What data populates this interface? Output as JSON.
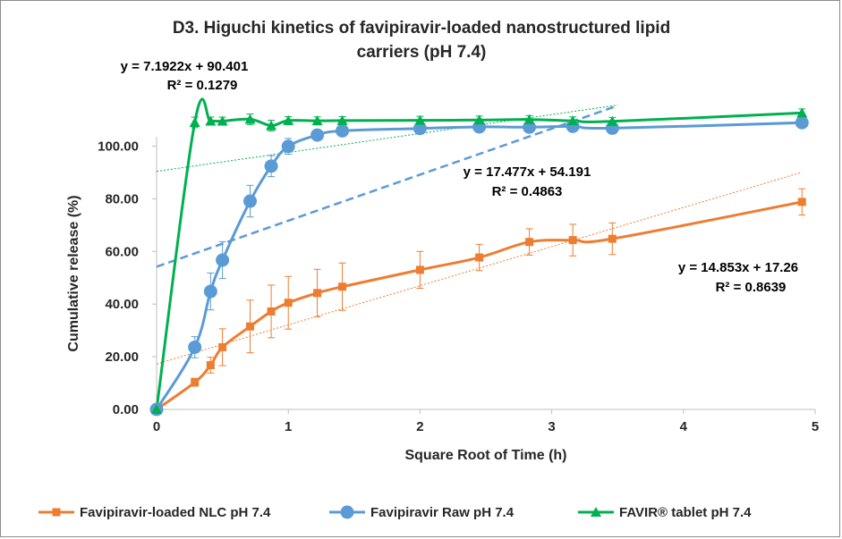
{
  "chart_data": {
    "type": "line",
    "title_lines": [
      "D3. Higuchi kinetics of favipiravir-loaded nanostructured lipid",
      "carriers (pH 7.4)"
    ],
    "xlabel": "Square Root of Time (h)",
    "ylabel": "Cumulative release (%)",
    "xlim": [
      0,
      5
    ],
    "ylim": [
      0,
      110
    ],
    "x_ticks": [
      "0",
      "1",
      "2",
      "3",
      "4",
      "5"
    ],
    "y_ticks": [
      "0.00",
      "20.00",
      "40.00",
      "60.00",
      "80.00",
      "100.00"
    ],
    "grid": false,
    "legend_position": "bottom",
    "series": [
      {
        "name": "Favipiravir-loaded NLC pH 7.4",
        "color": "#ED7D31",
        "marker": "square",
        "x": [
          0,
          0.29,
          0.41,
          0.5,
          0.71,
          0.87,
          1.0,
          1.22,
          1.41,
          2.0,
          2.45,
          2.83,
          3.16,
          3.46,
          4.9
        ],
        "y": [
          0,
          10.3,
          16.8,
          23.6,
          31.5,
          37.2,
          40.5,
          44.2,
          46.6,
          53.0,
          57.7,
          63.6,
          64.3,
          64.8,
          78.8
        ],
        "error": [
          0,
          1.5,
          3,
          7,
          10,
          10,
          10,
          9,
          9,
          7,
          5,
          5,
          6,
          6,
          5
        ],
        "trend": {
          "label_lines": [
            "y = 14.853x + 17.26",
            "R² = 0.8639"
          ],
          "slope": 14.853,
          "intercept": 17.26,
          "x_range": [
            0,
            4.9
          ]
        }
      },
      {
        "name": "Favipiravir Raw pH 7.4",
        "color": "#5B9BD5",
        "marker": "circle",
        "x": [
          0,
          0.29,
          0.41,
          0.5,
          0.71,
          0.87,
          1.0,
          1.22,
          1.41,
          2.0,
          2.45,
          2.83,
          3.16,
          3.46,
          4.9
        ],
        "y": [
          0,
          23.6,
          44.8,
          56.7,
          79.1,
          92.4,
          99.9,
          104.2,
          105.8,
          106.7,
          107.3,
          107.2,
          107.5,
          106.8,
          108.9
        ],
        "error": [
          0,
          4,
          7,
          7,
          6,
          4,
          3,
          2,
          2,
          2,
          2,
          2,
          2,
          2,
          2
        ],
        "trend": {
          "label_lines": [
            "y = 17.477x + 54.191",
            "R² = 0.4863"
          ],
          "slope": 17.477,
          "intercept": 54.191,
          "x_range": [
            0,
            3.5
          ]
        }
      },
      {
        "name": "FAVIR® tablet pH 7.4",
        "color": "#00B050",
        "marker": "triangle",
        "x": [
          0,
          0.29,
          0.41,
          0.5,
          0.71,
          0.87,
          1.0,
          1.22,
          1.41,
          2.0,
          2.45,
          2.83,
          3.16,
          3.46,
          4.9
        ],
        "y": [
          0,
          109.0,
          109.5,
          109.5,
          110.2,
          107.8,
          109.7,
          109.6,
          109.7,
          109.8,
          109.9,
          110.1,
          109.6,
          109.4,
          112.6
        ],
        "error": [
          0,
          2,
          1.5,
          1.5,
          2,
          2,
          1.5,
          1.5,
          1.5,
          1.5,
          1.5,
          1.5,
          1.5,
          1.5,
          1.5
        ],
        "trend": {
          "label_lines": [
            "y = 7.1922x + 90.401",
            "R² = 0.1279"
          ],
          "slope": 7.1922,
          "intercept": 90.401,
          "x_range": [
            0,
            3.5
          ]
        }
      }
    ]
  }
}
